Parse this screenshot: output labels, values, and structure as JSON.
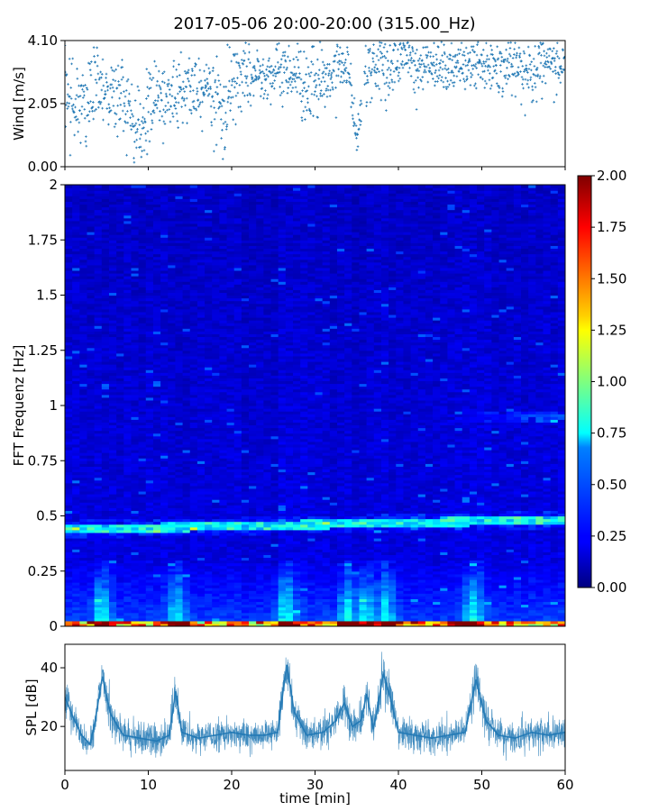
{
  "chart_data": [
    {
      "id": "wind",
      "type": "scatter",
      "title": "2017-05-06 20:00-20:00 (315.00_Hz)",
      "ylabel": "Wind [m/s]",
      "xlim": [
        0,
        60
      ],
      "ylim": [
        0,
        4.1
      ],
      "yticks": [
        0.0,
        2.05,
        4.1
      ],
      "ytick_labels": [
        "0.00",
        "2.05",
        "4.10"
      ],
      "color": "#1f77b4",
      "profile": {
        "t": [
          0,
          1,
          2,
          3,
          4,
          5,
          6,
          7,
          8,
          9,
          10,
          11,
          12,
          13,
          14,
          15,
          16,
          17,
          18,
          19,
          20,
          21,
          22,
          23,
          24,
          25,
          26,
          27,
          28,
          29,
          30,
          31,
          32,
          33,
          34,
          35,
          36,
          37,
          38,
          39,
          40,
          41,
          42,
          43,
          44,
          45,
          46,
          47,
          48,
          49,
          50,
          51,
          52,
          53,
          54,
          55,
          56,
          57,
          58,
          59,
          60
        ],
        "mean": [
          2.6,
          2.3,
          2.0,
          2.4,
          2.9,
          2.5,
          2.2,
          2.4,
          1.6,
          1.2,
          1.8,
          2.3,
          2.0,
          2.4,
          2.7,
          2.6,
          2.5,
          2.8,
          2.2,
          1.9,
          2.6,
          2.9,
          2.8,
          3.0,
          3.1,
          3.0,
          3.1,
          3.2,
          2.9,
          2.6,
          2.8,
          2.9,
          3.0,
          3.4,
          3.3,
          0.8,
          3.1,
          3.3,
          3.0,
          3.2,
          3.4,
          3.6,
          3.3,
          3.2,
          3.5,
          3.4,
          3.2,
          3.3,
          3.3,
          3.2,
          3.4,
          3.3,
          3.2,
          3.1,
          3.3,
          3.2,
          3.0,
          3.1,
          3.3,
          3.3,
          3.2
        ],
        "spread": [
          0.6,
          0.7,
          0.8,
          0.7,
          0.6,
          0.6,
          0.7,
          0.7,
          0.6,
          0.5,
          0.7,
          0.6,
          0.7,
          0.7,
          0.6,
          0.6,
          0.6,
          0.6,
          0.7,
          0.7,
          0.6,
          0.5,
          0.5,
          0.5,
          0.4,
          0.4,
          0.5,
          0.5,
          0.6,
          0.6,
          0.6,
          0.5,
          0.5,
          0.4,
          0.4,
          0.2,
          0.5,
          0.5,
          0.6,
          0.5,
          0.5,
          0.4,
          0.5,
          0.5,
          0.4,
          0.4,
          0.4,
          0.4,
          0.4,
          0.5,
          0.4,
          0.5,
          0.5,
          0.5,
          0.4,
          0.5,
          0.5,
          0.5,
          0.4,
          0.4,
          0.4
        ]
      },
      "gaps": [
        [
          35.6,
          35.9
        ]
      ]
    },
    {
      "id": "spectrogram",
      "type": "heatmap",
      "ylabel": "FFT Frequenz [Hz]",
      "xlim": [
        0,
        60
      ],
      "ylim": [
        0,
        2
      ],
      "yticks": [
        0,
        0.25,
        0.5,
        0.75,
        1,
        1.25,
        1.5,
        1.75,
        2
      ],
      "ytick_labels": [
        "0",
        "0.25",
        "0.5",
        "0.75",
        "1",
        "1.25",
        "1.5",
        "1.75",
        "2"
      ],
      "colormap": "jet",
      "color_range": [
        0.0,
        2.0
      ],
      "colorbar_ticks": [
        "0.00",
        "0.25",
        "0.50",
        "0.75",
        "1.00",
        "1.25",
        "1.50",
        "1.75",
        "2.00"
      ],
      "features": {
        "tonal_band": {
          "freq_start": 0.44,
          "freq_end": 0.485,
          "level": 0.75
        },
        "weak_band": {
          "freq_start": 0.94,
          "freq_end": 0.97,
          "level": 0.35
        },
        "low_freq_energy": {
          "freq_max": 0.3,
          "level": 1.0
        },
        "bursts_min": [
          4.5,
          13.5,
          26.5,
          34.0,
          36.0,
          38.5,
          49.0
        ]
      }
    },
    {
      "id": "spl",
      "type": "line",
      "xlabel": "time [min]",
      "ylabel": "SPL [dB]",
      "xlim": [
        0,
        60
      ],
      "ylim": [
        5,
        48
      ],
      "xticks": [
        0,
        10,
        20,
        30,
        40,
        50,
        60
      ],
      "xtick_labels": [
        "0",
        "10",
        "20",
        "30",
        "40",
        "50",
        "60"
      ],
      "yticks": [
        20,
        40
      ],
      "ytick_labels": [
        "20",
        "40"
      ],
      "color": "#1f77b4",
      "x": [
        0,
        1,
        2,
        3,
        3.5,
        4.5,
        5.5,
        7,
        9,
        11,
        12.5,
        13.3,
        14,
        16,
        18,
        20,
        22,
        24,
        25.5,
        26.6,
        27.5,
        29,
        31,
        32.5,
        33.5,
        34.5,
        35.5,
        36.2,
        37,
        38.2,
        39,
        40,
        42,
        44,
        46,
        48,
        49.3,
        50.5,
        52,
        54,
        56,
        58,
        60
      ],
      "y": [
        30,
        23,
        17,
        14,
        20,
        37,
        24,
        17,
        16,
        15,
        17,
        32,
        18,
        16,
        17,
        18,
        17,
        17,
        18,
        41,
        25,
        17,
        18,
        22,
        28,
        20,
        22,
        31,
        19,
        38,
        30,
        18,
        17,
        16,
        17,
        18,
        36,
        22,
        17,
        16,
        18,
        17,
        18
      ]
    }
  ]
}
